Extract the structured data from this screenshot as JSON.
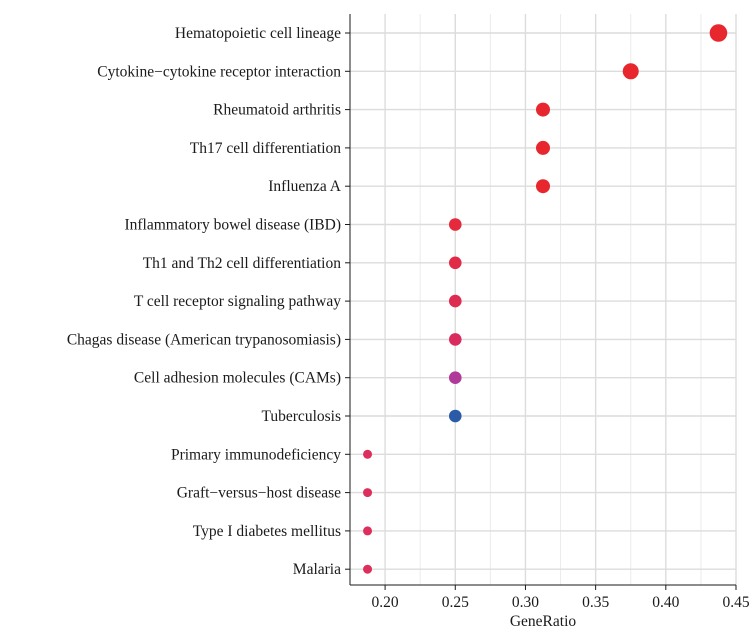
{
  "chart_data": {
    "type": "scatter",
    "title": "",
    "xlabel": "GeneRatio",
    "ylabel": "",
    "xlim": [
      0.175,
      0.45
    ],
    "xticks": [
      0.2,
      0.25,
      0.3,
      0.35,
      0.4,
      0.45
    ],
    "xtick_labels": [
      "0.20",
      "0.25",
      "0.30",
      "0.35",
      "0.40",
      "0.45"
    ],
    "grid": true,
    "legend": "none",
    "categories": [
      "Hematopoietic cell lineage",
      "Cytokine−cytokine receptor interaction",
      "Rheumatoid arthritis",
      "Th17 cell differentiation",
      "Influenza A",
      "Inflammatory bowel disease (IBD)",
      "Th1 and Th2 cell differentiation",
      "T cell receptor signaling pathway",
      "Chagas disease (American trypanosomiasis)",
      "Cell adhesion molecules (CAMs)",
      "Tuberculosis",
      "Primary immunodeficiency",
      "Graft−versus−host disease",
      "Type I diabetes mellitus",
      "Malaria"
    ],
    "points": [
      {
        "y": "Hematopoietic cell lineage",
        "x": 0.4375,
        "count": 7,
        "color": "#e8262e"
      },
      {
        "y": "Cytokine−cytokine receptor interaction",
        "x": 0.375,
        "count": 6,
        "color": "#e8262e"
      },
      {
        "y": "Rheumatoid arthritis",
        "x": 0.3125,
        "count": 5,
        "color": "#e8262e"
      },
      {
        "y": "Th17 cell differentiation",
        "x": 0.3125,
        "count": 5,
        "color": "#e8262e"
      },
      {
        "y": "Influenza A",
        "x": 0.3125,
        "count": 5,
        "color": "#e8262e"
      },
      {
        "y": "Inflammatory bowel disease (IBD)",
        "x": 0.25,
        "count": 4,
        "color": "#e42a3c"
      },
      {
        "y": "Th1 and Th2 cell differentiation",
        "x": 0.25,
        "count": 4,
        "color": "#e02a48"
      },
      {
        "y": "T cell receptor signaling pathway",
        "x": 0.25,
        "count": 4,
        "color": "#dd2b52"
      },
      {
        "y": "Chagas disease (American trypanosomiasis)",
        "x": 0.25,
        "count": 4,
        "color": "#d92c5c"
      },
      {
        "y": "Cell adhesion molecules (CAMs)",
        "x": 0.25,
        "count": 4,
        "color": "#b0399a"
      },
      {
        "y": "Tuberculosis",
        "x": 0.25,
        "count": 4,
        "color": "#2b5ba8"
      },
      {
        "y": "Primary immunodeficiency",
        "x": 0.1875,
        "count": 3,
        "color": "#dc2f5c"
      },
      {
        "y": "Graft−versus−host disease",
        "x": 0.1875,
        "count": 3,
        "color": "#dc2f5c"
      },
      {
        "y": "Type I diabetes mellitus",
        "x": 0.1875,
        "count": 3,
        "color": "#dc2f5c"
      },
      {
        "y": "Malaria",
        "x": 0.1875,
        "count": 3,
        "color": "#dc2f5c"
      }
    ]
  }
}
